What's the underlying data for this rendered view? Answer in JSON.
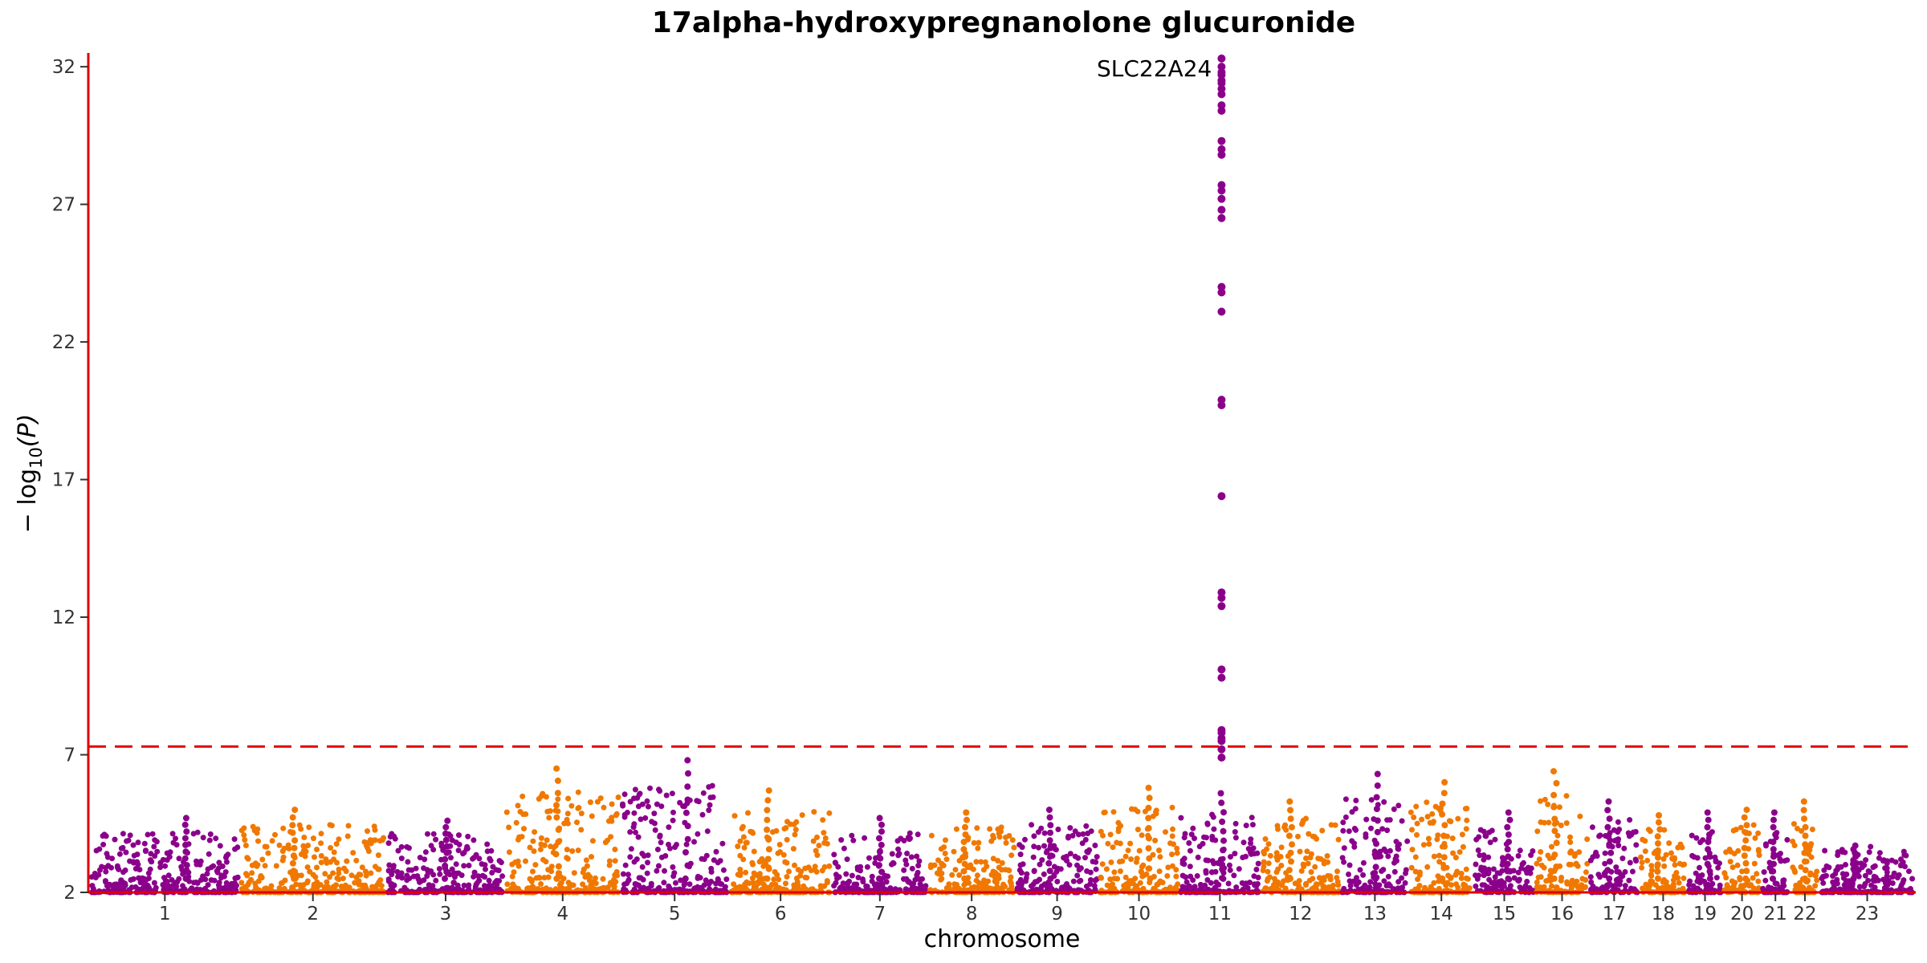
{
  "colors": {
    "odd": "#8b008b",
    "even": "#f07800",
    "axis": "#e00000",
    "threshold": "#e00000"
  },
  "chart_data": {
    "type": "scatter",
    "subtype": "manhattan",
    "title": "17alpha-hydroxypregnanolone glucuronide",
    "xlabel": "chromosome",
    "ylabel_parts": {
      "base": "− log",
      "sub": "10",
      "arg": "(P)"
    },
    "ylim": [
      2,
      32.5
    ],
    "yticks": [
      2,
      7,
      12,
      17,
      22,
      27,
      32
    ],
    "grid": false,
    "threshold": 7.3,
    "categories": [
      "1",
      "2",
      "3",
      "4",
      "5",
      "6",
      "7",
      "8",
      "9",
      "10",
      "11",
      "12",
      "13",
      "14",
      "15",
      "16",
      "17",
      "18",
      "19",
      "20",
      "21",
      "22",
      "23"
    ],
    "chrom_sizes": [
      249,
      243,
      198,
      191,
      181,
      171,
      159,
      146,
      138,
      134,
      135,
      133,
      114,
      107,
      102,
      90,
      83,
      80,
      59,
      64,
      47,
      51,
      156
    ],
    "chrom_peaks": [
      4.7,
      5.0,
      4.6,
      6.5,
      6.8,
      5.7,
      4.7,
      4.9,
      5.0,
      5.8,
      32.3,
      5.3,
      6.3,
      6.0,
      4.9,
      6.4,
      5.3,
      4.8,
      4.9,
      5.0,
      4.9,
      5.3,
      3.7
    ],
    "peak_hit": {
      "chromosome": "11",
      "label": "SLC22A24",
      "values": [
        32.3,
        32.0,
        31.8,
        31.7,
        31.5,
        31.4,
        31.2,
        31.0,
        30.6,
        30.4,
        29.3,
        29.0,
        28.8,
        27.7,
        27.5,
        27.2,
        26.8,
        26.5,
        24.0,
        23.8,
        23.1,
        19.9,
        19.7,
        16.4,
        12.9,
        12.7,
        12.4,
        10.1,
        9.8,
        7.9,
        7.8,
        7.6,
        7.5,
        7.2,
        6.9
      ]
    }
  }
}
